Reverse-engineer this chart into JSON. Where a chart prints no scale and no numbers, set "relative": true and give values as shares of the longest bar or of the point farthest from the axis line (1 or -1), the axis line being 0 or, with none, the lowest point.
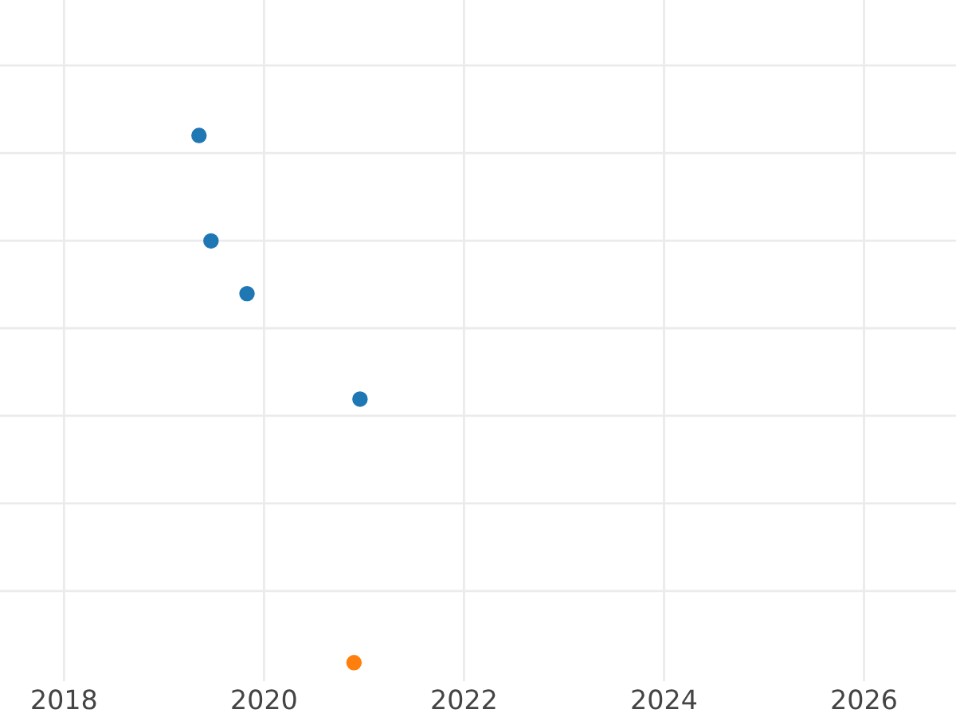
{
  "chart_data": {
    "type": "scatter",
    "relative": true,
    "grid": true,
    "marker": "circle",
    "xlim": [
      2017.36,
      2026.92
    ],
    "xticks": [
      2018,
      2020,
      2022,
      2024,
      2026
    ],
    "series": [
      {
        "color": "#1f77b4",
        "x": [
          2019.35,
          2019.47,
          2019.83,
          2020.96
        ],
        "values": [
          1,
          0.8,
          0.7,
          0.5
        ]
      },
      {
        "color": "#ff7f0e",
        "x": [
          2020.9
        ],
        "values": [
          0
        ]
      }
    ]
  }
}
